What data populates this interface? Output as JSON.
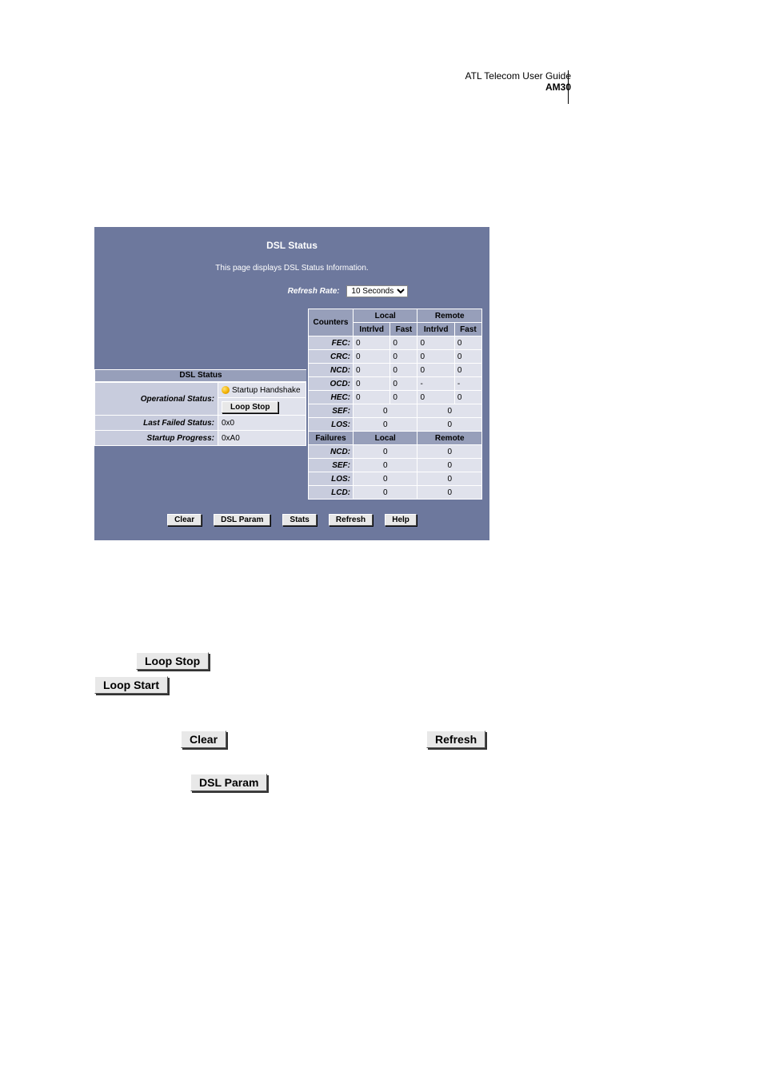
{
  "header": {
    "guide": "ATL Telecom User Guide",
    "model": "AM30"
  },
  "panel": {
    "title": "DSL Status",
    "subtitle": "This page displays DSL Status Information.",
    "refresh_label": "Refresh Rate:",
    "refresh_value": "10 Seconds"
  },
  "status_block": {
    "title": "DSL Status",
    "operational_label": "Operational Status:",
    "operational_value": "Startup Handshake",
    "loop_button": "Loop Stop",
    "last_failed_label": "Last Failed Status:",
    "last_failed_value": "0x0",
    "startup_progress_label": "Startup Progress:",
    "startup_progress_value": "0xA0"
  },
  "counters": {
    "header_main": "Counters",
    "header_local": "Local",
    "header_remote": "Remote",
    "sub_intrlvd": "Intrlvd",
    "sub_fast": "Fast",
    "rows": [
      {
        "label": "FEC:",
        "v": [
          "0",
          "0",
          "0",
          "0"
        ]
      },
      {
        "label": "CRC:",
        "v": [
          "0",
          "0",
          "0",
          "0"
        ]
      },
      {
        "label": "NCD:",
        "v": [
          "0",
          "0",
          "0",
          "0"
        ]
      },
      {
        "label": "OCD:",
        "v": [
          "0",
          "0",
          "-",
          "-"
        ]
      },
      {
        "label": "HEC:",
        "v": [
          "0",
          "0",
          "0",
          "0"
        ]
      }
    ],
    "rows2": [
      {
        "label": "SEF:",
        "local": "0",
        "remote": "0"
      },
      {
        "label": "LOS:",
        "local": "0",
        "remote": "0"
      }
    ],
    "failures_header": "Failures",
    "failures_local": "Local",
    "failures_remote": "Remote",
    "failures_rows": [
      {
        "label": "NCD:",
        "local": "0",
        "remote": "0"
      },
      {
        "label": "SEF:",
        "local": "0",
        "remote": "0"
      },
      {
        "label": "LOS:",
        "local": "0",
        "remote": "0"
      },
      {
        "label": "LCD:",
        "local": "0",
        "remote": "0"
      }
    ]
  },
  "buttons": {
    "clear": "Clear",
    "dsl_param": "DSL Param",
    "stats": "Stats",
    "refresh": "Refresh",
    "help": "Help"
  },
  "lower_buttons": {
    "loop_stop": "Loop Stop",
    "loop_start": "Loop Start",
    "clear": "Clear",
    "refresh": "Refresh",
    "dsl_param": "DSL Param"
  },
  "colors": {
    "panel_bg": "#6d789d",
    "header_bg": "#979fba",
    "row_label_bg": "#c8ccdd",
    "cell_bg": "#e0e2ec",
    "border": "#ffffff"
  }
}
